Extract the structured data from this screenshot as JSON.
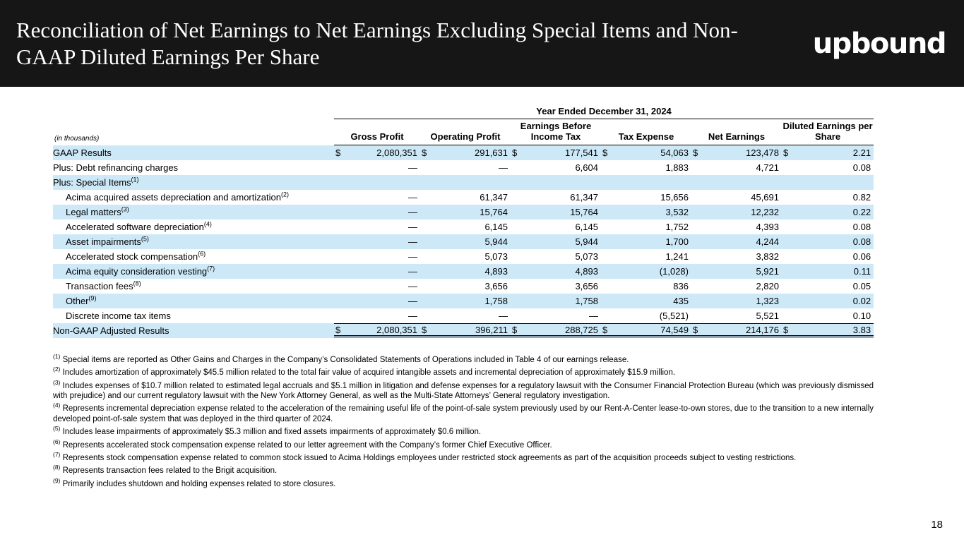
{
  "slide": {
    "title": "Reconciliation of Net Earnings to Net Earnings Excluding Special Items and Non-GAAP Diluted Earnings Per Share",
    "logo_text": "upbound",
    "page_number": "18"
  },
  "colors": {
    "header_bg": "#161616",
    "row_highlight": "#cde9f8"
  },
  "table": {
    "period_header": "Year Ended December 31, 2024",
    "unit_label": "(in thousands)",
    "columns": [
      {
        "label": "Gross Profit"
      },
      {
        "label": "Operating Profit"
      },
      {
        "label": "Earnings Before Income Tax"
      },
      {
        "label": "Tax Expense"
      },
      {
        "label": "Net Earnings"
      },
      {
        "label": "Diluted Earnings per Share"
      }
    ],
    "rows": [
      {
        "label": "GAAP Results",
        "sup": "",
        "indent": false,
        "shade": true,
        "dollar": true,
        "total": false,
        "values": [
          "2,080,351",
          "291,631",
          "177,541",
          "54,063",
          "123,478",
          "2.21"
        ]
      },
      {
        "label": "Plus: Debt refinancing charges",
        "sup": "",
        "indent": false,
        "shade": false,
        "dollar": false,
        "total": false,
        "values": [
          "—",
          "—",
          "6,604",
          "1,883",
          "4,721",
          "0.08"
        ]
      },
      {
        "label": "Plus: Special Items",
        "sup": "(1)",
        "indent": false,
        "shade": true,
        "dollar": false,
        "total": false,
        "values": [
          "",
          "",
          "",
          "",
          "",
          ""
        ]
      },
      {
        "label": "Acima acquired assets depreciation and amortization",
        "sup": "(2)",
        "indent": true,
        "shade": false,
        "dollar": false,
        "total": false,
        "values": [
          "—",
          "61,347",
          "61,347",
          "15,656",
          "45,691",
          "0.82"
        ]
      },
      {
        "label": "Legal matters",
        "sup": "(3)",
        "indent": true,
        "shade": true,
        "dollar": false,
        "total": false,
        "values": [
          "—",
          "15,764",
          "15,764",
          "3,532",
          "12,232",
          "0.22"
        ]
      },
      {
        "label": "Accelerated software depreciation",
        "sup": "(4)",
        "indent": true,
        "shade": false,
        "dollar": false,
        "total": false,
        "values": [
          "—",
          "6,145",
          "6,145",
          "1,752",
          "4,393",
          "0.08"
        ]
      },
      {
        "label": "Asset impairments",
        "sup": "(5)",
        "indent": true,
        "shade": true,
        "dollar": false,
        "total": false,
        "values": [
          "—",
          "5,944",
          "5,944",
          "1,700",
          "4,244",
          "0.08"
        ]
      },
      {
        "label": "Accelerated stock compensation",
        "sup": "(6)",
        "indent": true,
        "shade": false,
        "dollar": false,
        "total": false,
        "values": [
          "—",
          "5,073",
          "5,073",
          "1,241",
          "3,832",
          "0.06"
        ]
      },
      {
        "label": "Acima equity consideration vesting",
        "sup": "(7)",
        "indent": true,
        "shade": true,
        "dollar": false,
        "total": false,
        "values": [
          "—",
          "4,893",
          "4,893",
          "(1,028)",
          "5,921",
          "0.11"
        ]
      },
      {
        "label": "Transaction fees",
        "sup": "(8)",
        "indent": true,
        "shade": false,
        "dollar": false,
        "total": false,
        "values": [
          "—",
          "3,656",
          "3,656",
          "836",
          "2,820",
          "0.05"
        ]
      },
      {
        "label": "Other",
        "sup": "(9)",
        "indent": true,
        "shade": true,
        "dollar": false,
        "total": false,
        "values": [
          "—",
          "1,758",
          "1,758",
          "435",
          "1,323",
          "0.02"
        ]
      },
      {
        "label": "Discrete income tax items",
        "sup": "",
        "indent": true,
        "shade": false,
        "dollar": false,
        "total": false,
        "values": [
          "—",
          "—",
          "—",
          "(5,521)",
          "5,521",
          "0.10"
        ]
      },
      {
        "label": "Non-GAAP Adjusted Results",
        "sup": "",
        "indent": false,
        "shade": true,
        "dollar": true,
        "total": true,
        "values": [
          "2,080,351",
          "396,211",
          "288,725",
          "74,549",
          "214,176",
          "3.83"
        ]
      }
    ]
  },
  "footnotes": [
    {
      "num": "(1)",
      "text": "Special items are reported as Other Gains and Charges in the Company’s Consolidated Statements of Operations included in Table 4 of our earnings release."
    },
    {
      "num": "(2)",
      "text": "Includes amortization of approximately $45.5 million related to the total fair value of acquired intangible assets and incremental depreciation of approximately $15.9 million."
    },
    {
      "num": "(3)",
      "text": "Includes expenses of $10.7 million related to estimated legal accruals and $5.1 million in litigation and defense expenses for a regulatory lawsuit with the Consumer Financial Protection Bureau (which was previously dismissed with prejudice) and our current regulatory lawsuit with the New York Attorney General, as well as the Multi-State Attorneys’ General regulatory investigation."
    },
    {
      "num": "(4)",
      "text": "Represents incremental depreciation expense related to the acceleration of the remaining useful life of the point-of-sale system previously used by our Rent-A-Center lease-to-own stores, due to the transition to a new internally developed point-of-sale system that was deployed in the third quarter of 2024."
    },
    {
      "num": "(5)",
      "text": "Includes lease impairments of approximately $5.3 million and fixed assets impairments of approximately $0.6 million."
    },
    {
      "num": "(6)",
      "text": "Represents accelerated stock compensation expense related to our letter agreement with the Company’s former Chief Executive Officer."
    },
    {
      "num": "(7)",
      "text": "Represents stock compensation expense related to common stock issued to Acima Holdings employees under restricted stock agreements as part of the acquisition proceeds subject to vesting restrictions."
    },
    {
      "num": "(8)",
      "text": "Represents transaction fees related to the Brigit acquisition."
    },
    {
      "num": "(9)",
      "text": "Primarily includes shutdown and holding expenses related to store closures."
    }
  ]
}
